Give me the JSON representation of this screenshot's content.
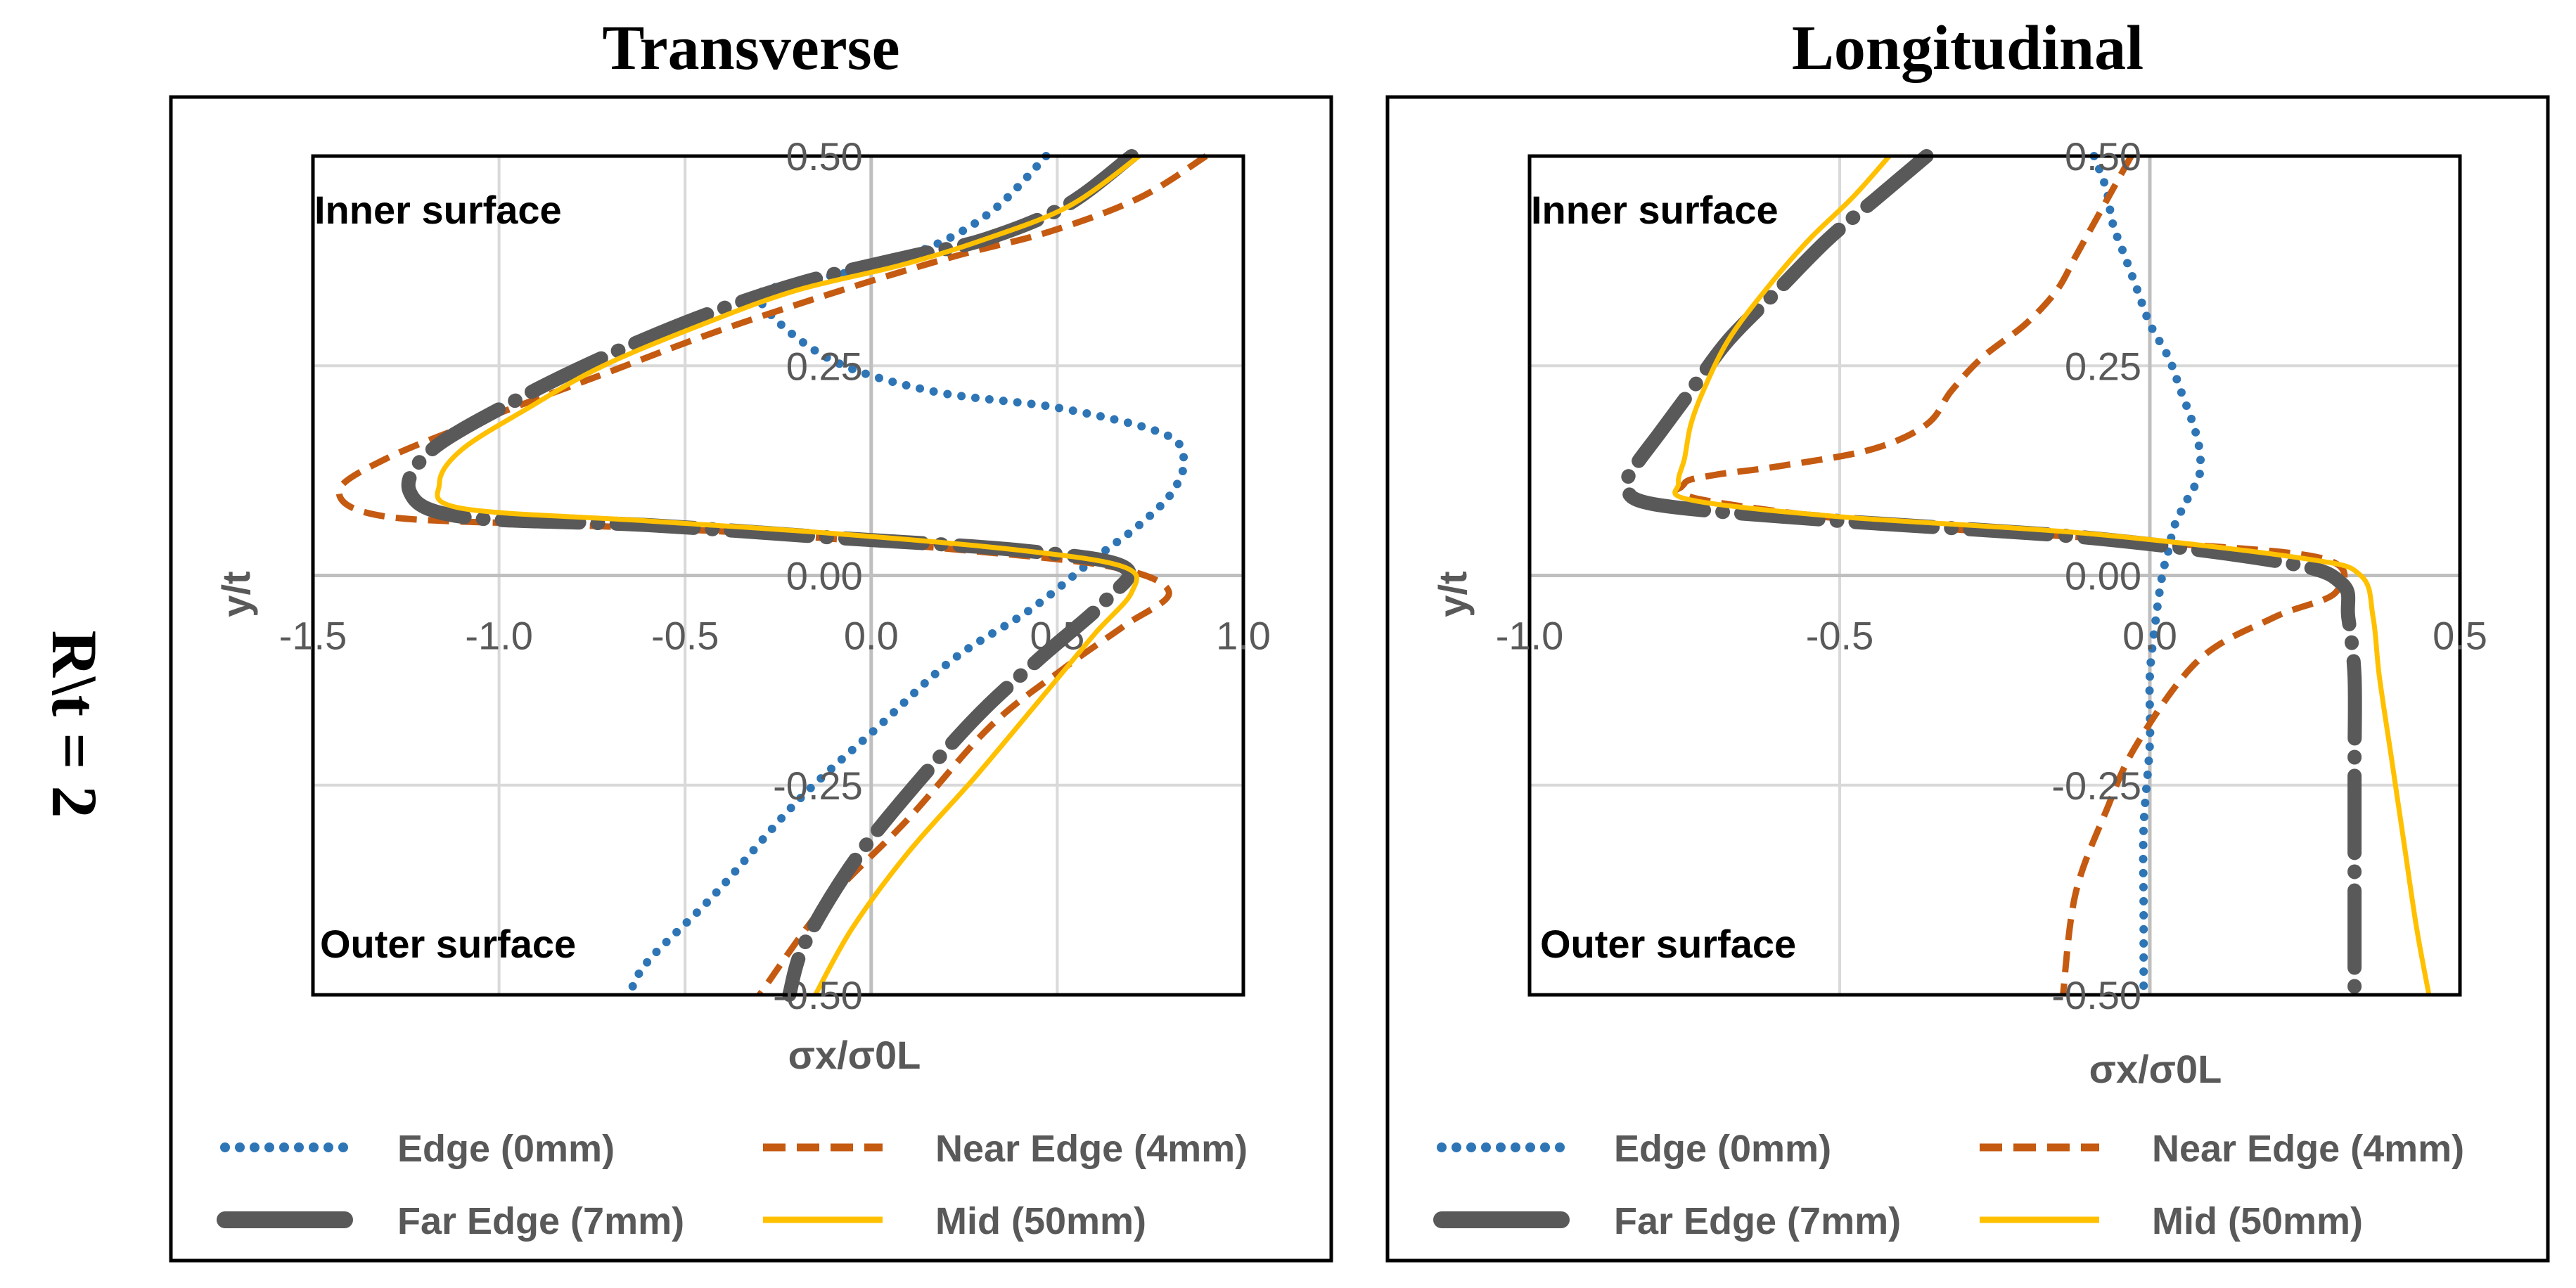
{
  "row_label": "R\\t = 2",
  "series_styles": [
    {
      "name": "Edge (0mm)",
      "color": "#2E75B6",
      "dash": "dots"
    },
    {
      "name": "Near Edge (4mm)",
      "color": "#C55A11",
      "dash": "dashed"
    },
    {
      "name": "Far Edge (7mm)",
      "color": "#595959",
      "dash": "longdash"
    },
    {
      "name": "Mid (50mm)",
      "color": "#FFC000",
      "dash": "solid"
    }
  ],
  "chart_data": [
    {
      "type": "line",
      "title": "Transverse",
      "xlabel": "σx/σ0L",
      "ylabel": "y/t",
      "xlim": [
        -1.5,
        1.0
      ],
      "ylim": [
        -0.5,
        0.5
      ],
      "xticks": [
        -1.5,
        -1.0,
        -0.5,
        0.0,
        0.5,
        1.0
      ],
      "xtick_labels": [
        "-1.5",
        "-1.0",
        "-0.5",
        "0.0",
        "0.5",
        "1.0"
      ],
      "yticks": [
        0.5,
        0.25,
        0.0,
        -0.25,
        -0.5
      ],
      "ytick_labels": [
        "0.50",
        "0.25",
        "0.00",
        "-0.25",
        "-0.50"
      ],
      "annotations": [
        "Inner surface",
        "Outer surface"
      ],
      "series": [
        {
          "name": "Edge (0mm)",
          "x": [
            0.47,
            0.34,
            0.2,
            0.02,
            -0.18,
            -0.3,
            -0.12,
            0.16,
            0.5,
            0.78,
            0.84,
            0.81,
            0.72,
            0.6,
            0.43,
            0.22,
            0.02,
            -0.2,
            -0.42,
            -0.6,
            -0.65
          ],
          "y": [
            0.5,
            0.44,
            0.4,
            0.37,
            0.35,
            0.33,
            0.26,
            0.22,
            0.2,
            0.17,
            0.14,
            0.1,
            0.06,
            0.02,
            -0.04,
            -0.1,
            -0.18,
            -0.27,
            -0.38,
            -0.46,
            -0.5
          ]
        },
        {
          "name": "Near Edge (4mm)",
          "x": [
            0.9,
            0.72,
            0.48,
            0.22,
            -0.08,
            -0.42,
            -0.72,
            -1.02,
            -1.3,
            -1.43,
            -1.3,
            -0.8,
            -0.3,
            0.25,
            0.65,
            0.8,
            0.68,
            0.52,
            0.32,
            0.1,
            -0.12,
            -0.3
          ],
          "y": [
            0.5,
            0.45,
            0.41,
            0.38,
            0.34,
            0.29,
            0.24,
            0.19,
            0.14,
            0.1,
            0.07,
            0.06,
            0.05,
            0.03,
            0.01,
            -0.02,
            -0.06,
            -0.11,
            -0.18,
            -0.29,
            -0.39,
            -0.5
          ]
        },
        {
          "name": "Far Edge (7mm)",
          "x": [
            0.7,
            0.52,
            0.3,
            0.1,
            -0.18,
            -0.45,
            -0.72,
            -0.95,
            -1.18,
            -1.24,
            -1.1,
            -0.6,
            -0.1,
            0.4,
            0.68,
            0.63,
            0.45,
            0.28,
            0.08,
            -0.06,
            -0.18,
            -0.22
          ],
          "y": [
            0.5,
            0.44,
            0.4,
            0.38,
            0.35,
            0.31,
            0.26,
            0.21,
            0.15,
            0.1,
            0.07,
            0.06,
            0.045,
            0.03,
            0.01,
            -0.03,
            -0.1,
            -0.17,
            -0.27,
            -0.35,
            -0.44,
            -0.5
          ]
        },
        {
          "name": "Mid (50mm)",
          "x": [
            0.72,
            0.53,
            0.3,
            0.08,
            -0.2,
            -0.45,
            -0.72,
            -0.92,
            -1.1,
            -1.16,
            -1.1,
            -0.6,
            -0.1,
            0.4,
            0.68,
            0.7,
            0.6,
            0.45,
            0.28,
            0.1,
            -0.05,
            -0.15
          ],
          "y": [
            0.5,
            0.44,
            0.4,
            0.37,
            0.34,
            0.3,
            0.25,
            0.2,
            0.15,
            0.11,
            0.08,
            0.065,
            0.05,
            0.03,
            0.01,
            -0.02,
            -0.07,
            -0.15,
            -0.24,
            -0.33,
            -0.42,
            -0.5
          ]
        }
      ]
    },
    {
      "type": "line",
      "title": "Longitudinal",
      "xlabel": "σx/σ0L",
      "ylabel": "y/t",
      "xlim": [
        -1.0,
        0.5
      ],
      "ylim": [
        -0.5,
        0.5
      ],
      "xticks": [
        -1.0,
        -0.5,
        0.0,
        0.5
      ],
      "xtick_labels": [
        "-1.0",
        "-0.5",
        "0.0",
        "0.5"
      ],
      "yticks": [
        0.5,
        0.25,
        0.0,
        -0.25,
        -0.5
      ],
      "ytick_labels": [
        "0.50",
        "0.25",
        "0.00",
        "-0.25",
        "-0.50"
      ],
      "annotations": [
        "Inner surface",
        "Outer surface"
      ],
      "series": [
        {
          "name": "Edge (0mm)",
          "x": [
            -0.09,
            -0.07,
            -0.06,
            -0.04,
            -0.02,
            0.0,
            0.03,
            0.05,
            0.07,
            0.08,
            0.08,
            0.06,
            0.04,
            0.03,
            0.02,
            0.01,
            0.0,
            0.0,
            -0.01,
            -0.01,
            -0.01
          ],
          "y": [
            0.5,
            0.46,
            0.42,
            0.38,
            0.34,
            0.3,
            0.26,
            0.22,
            0.18,
            0.15,
            0.12,
            0.09,
            0.06,
            0.03,
            0.0,
            -0.05,
            -0.12,
            -0.2,
            -0.3,
            -0.4,
            -0.5
          ]
        },
        {
          "name": "Near Edge (4mm)",
          "x": [
            -0.03,
            -0.06,
            -0.09,
            -0.12,
            -0.15,
            -0.2,
            -0.27,
            -0.32,
            -0.36,
            -0.45,
            -0.6,
            -0.7,
            -0.75,
            -0.72,
            -0.4,
            0.0,
            0.28,
            0.3,
            0.2,
            0.08,
            -0.02,
            -0.07,
            -0.12,
            -0.14
          ],
          "y": [
            0.5,
            0.46,
            0.42,
            0.38,
            0.34,
            0.3,
            0.26,
            0.22,
            0.18,
            0.15,
            0.13,
            0.12,
            0.11,
            0.09,
            0.06,
            0.04,
            0.02,
            -0.02,
            -0.05,
            -0.1,
            -0.2,
            -0.28,
            -0.38,
            -0.5
          ]
        },
        {
          "name": "Far Edge (7mm)",
          "x": [
            -0.36,
            -0.44,
            -0.52,
            -0.6,
            -0.68,
            -0.74,
            -0.79,
            -0.83,
            -0.84,
            -0.8,
            -0.5,
            -0.1,
            0.22,
            0.31,
            0.32,
            0.33,
            0.33,
            0.33,
            0.33,
            0.33
          ],
          "y": [
            0.5,
            0.45,
            0.4,
            0.34,
            0.28,
            0.22,
            0.17,
            0.13,
            0.11,
            0.085,
            0.065,
            0.045,
            0.015,
            -0.01,
            -0.05,
            -0.12,
            -0.22,
            -0.32,
            -0.42,
            -0.5
          ]
        },
        {
          "name": "Mid (50mm)",
          "x": [
            -0.42,
            -0.48,
            -0.55,
            -0.62,
            -0.68,
            -0.72,
            -0.74,
            -0.75,
            -0.76,
            -0.74,
            -0.5,
            -0.1,
            0.25,
            0.34,
            0.36,
            0.37,
            0.39,
            0.41,
            0.43,
            0.45
          ],
          "y": [
            0.5,
            0.45,
            0.4,
            0.34,
            0.28,
            0.22,
            0.18,
            0.14,
            0.11,
            0.09,
            0.07,
            0.05,
            0.02,
            0.0,
            -0.05,
            -0.12,
            -0.22,
            -0.32,
            -0.42,
            -0.5
          ]
        }
      ]
    }
  ]
}
